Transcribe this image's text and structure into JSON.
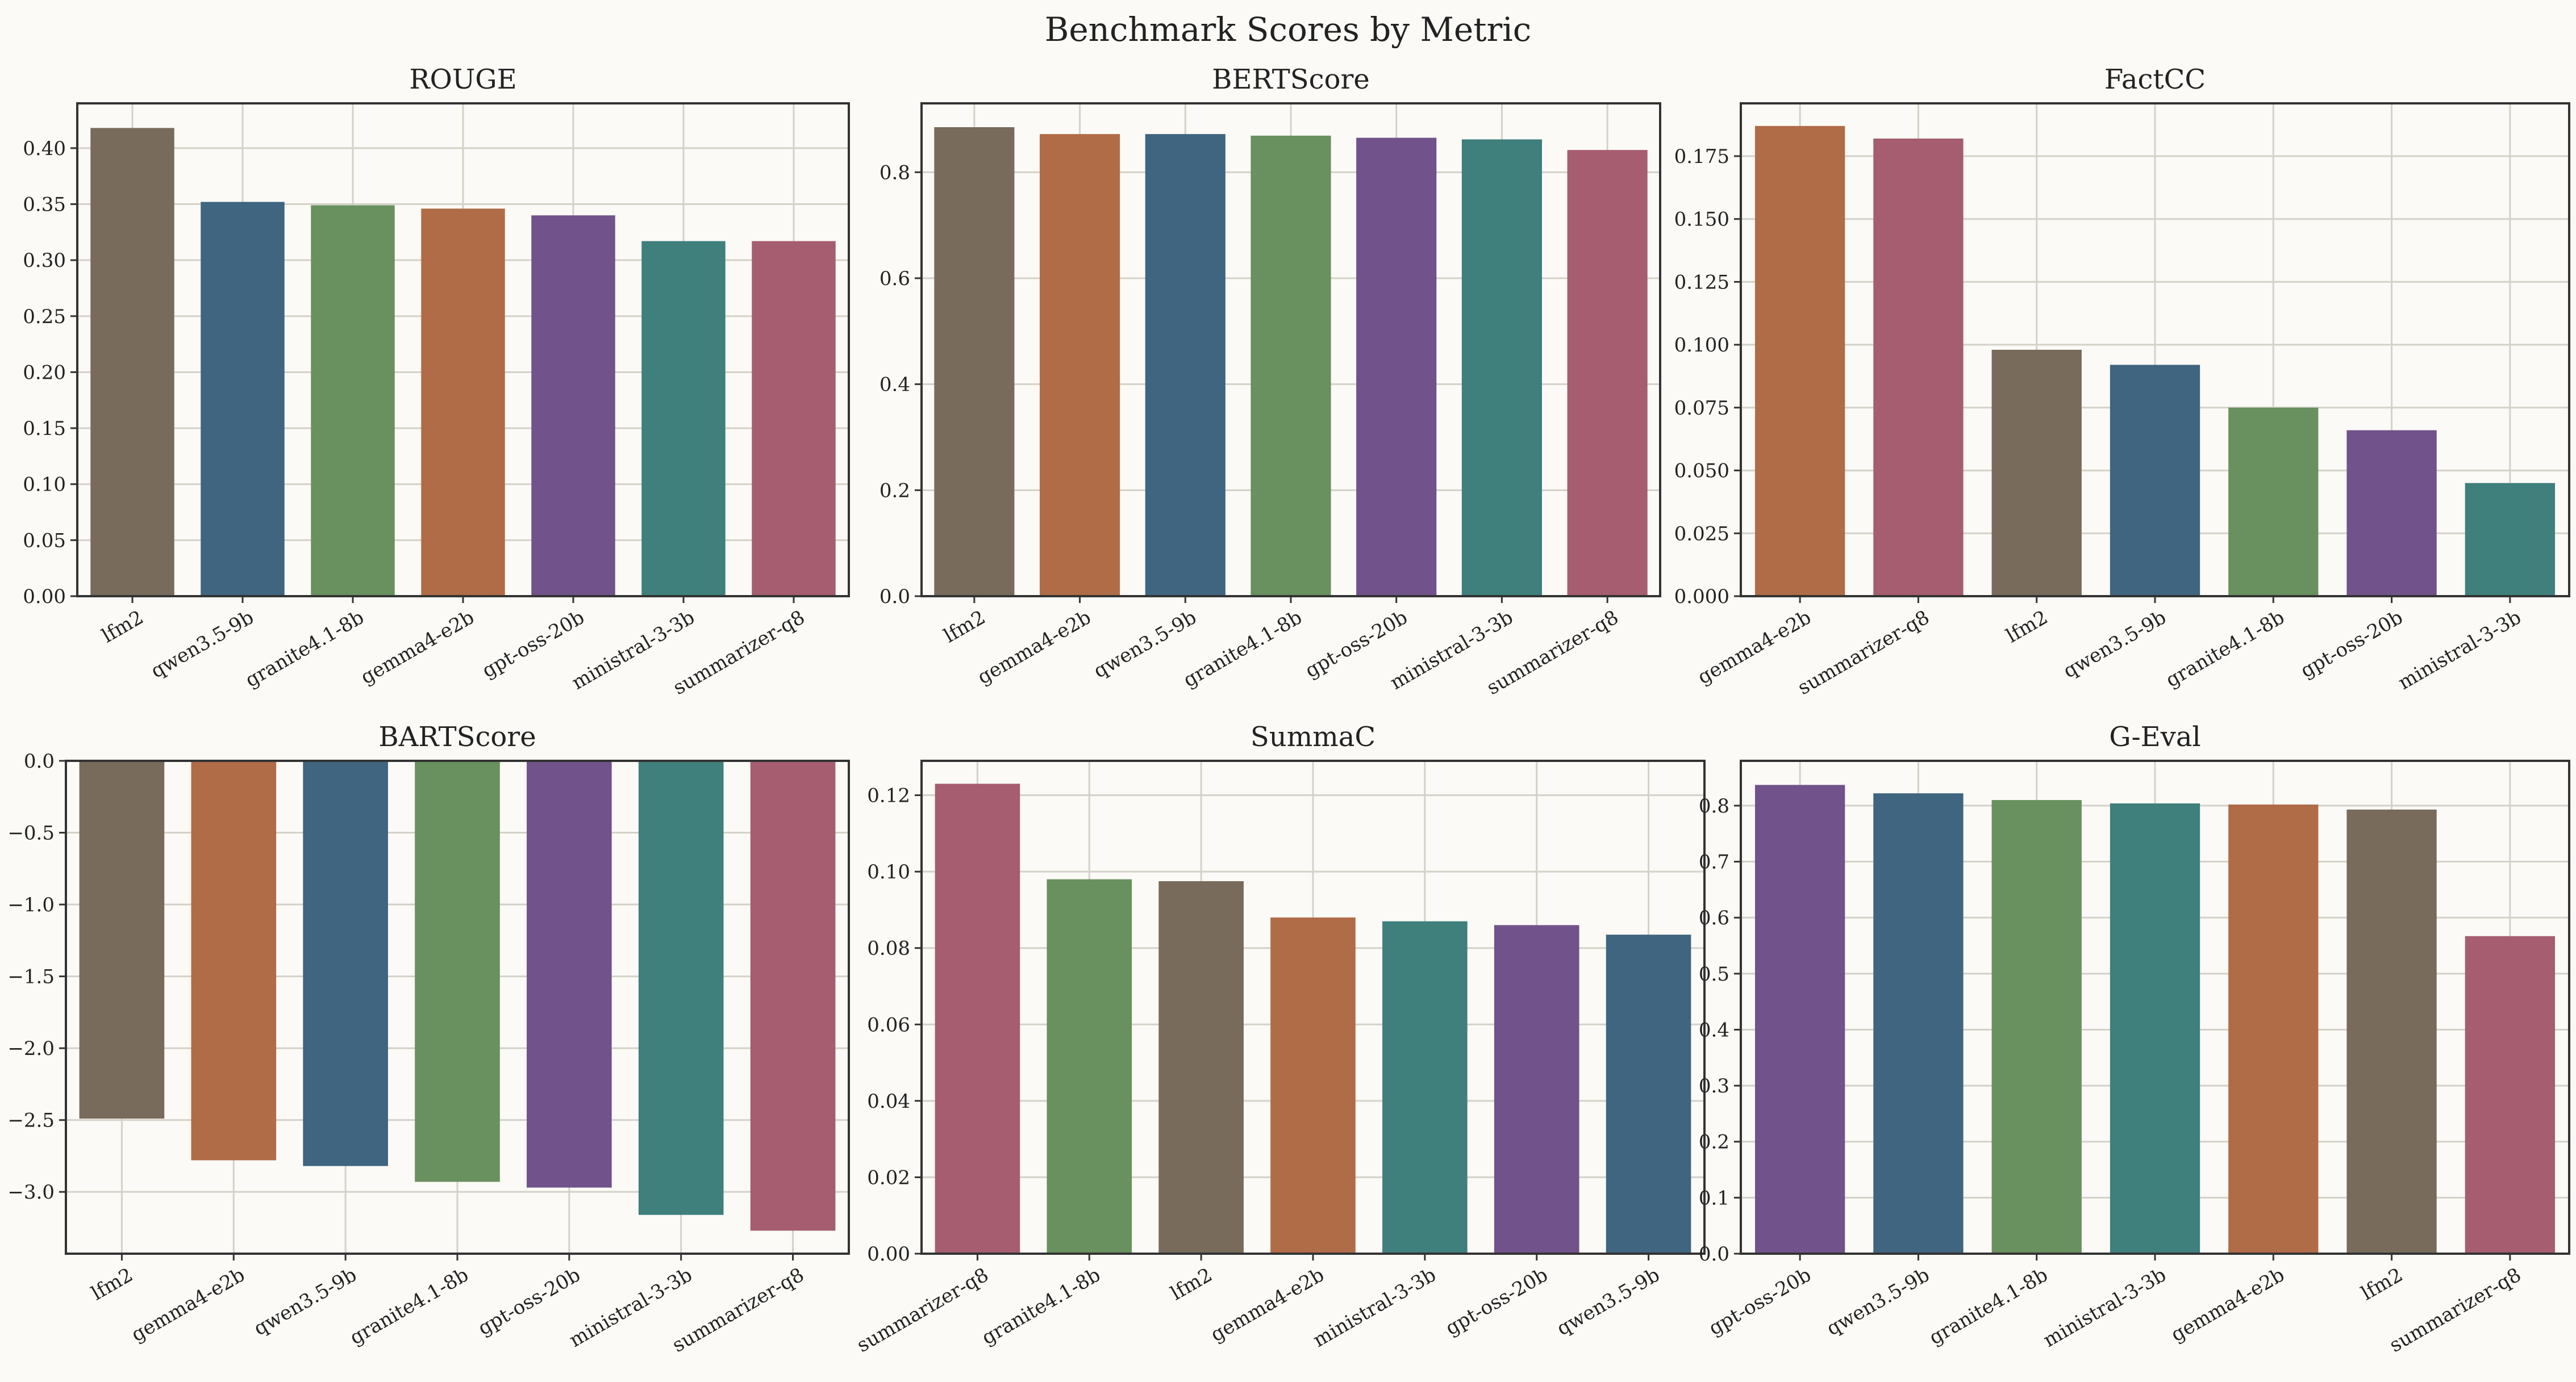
{
  "figure_title": "Benchmark Scores by Metric",
  "colors": {
    "lfm2": "#786b5b",
    "qwen3.5-9b": "#3f6580",
    "granite4.1-8b": "#69905f",
    "gemma4-e2b": "#b06c47",
    "gpt-oss-20b": "#71528a",
    "ministral-3-3b": "#3f7f7c",
    "summarizer-q8": "#a65d70",
    "background": "#fbfaf6",
    "grid": "#d4d1c8"
  },
  "chart_data": [
    {
      "type": "bar",
      "title": "ROUGE",
      "categories": [
        "lfm2",
        "qwen3.5-9b",
        "granite4.1-8b",
        "gemma4-e2b",
        "gpt-oss-20b",
        "ministral-3-3b",
        "summarizer-q8"
      ],
      "values": [
        0.418,
        0.352,
        0.349,
        0.346,
        0.34,
        0.317,
        0.317
      ],
      "ylim": [
        0,
        0.44
      ],
      "yticks": [
        0.0,
        0.05,
        0.1,
        0.15,
        0.2,
        0.25,
        0.3,
        0.35,
        0.4
      ],
      "ytick_labels": [
        "0.00",
        "0.05",
        "0.10",
        "0.15",
        "0.20",
        "0.25",
        "0.30",
        "0.35",
        "0.40"
      ],
      "grid": true
    },
    {
      "type": "bar",
      "title": "BERTScore",
      "categories": [
        "lfm2",
        "gemma4-e2b",
        "qwen3.5-9b",
        "granite4.1-8b",
        "gpt-oss-20b",
        "ministral-3-3b",
        "summarizer-q8"
      ],
      "values": [
        0.885,
        0.872,
        0.872,
        0.869,
        0.865,
        0.862,
        0.842
      ],
      "ylim": [
        0,
        0.93
      ],
      "yticks": [
        0.0,
        0.2,
        0.4,
        0.6,
        0.8
      ],
      "ytick_labels": [
        "0.0",
        "0.2",
        "0.4",
        "0.6",
        "0.8"
      ],
      "grid": true
    },
    {
      "type": "bar",
      "title": "FactCC",
      "categories": [
        "gemma4-e2b",
        "summarizer-q8",
        "lfm2",
        "qwen3.5-9b",
        "granite4.1-8b",
        "gpt-oss-20b",
        "ministral-3-3b"
      ],
      "values": [
        0.187,
        0.182,
        0.098,
        0.092,
        0.075,
        0.066,
        0.045
      ],
      "ylim": [
        0,
        0.196
      ],
      "yticks": [
        0.0,
        0.025,
        0.05,
        0.075,
        0.1,
        0.125,
        0.15,
        0.175
      ],
      "ytick_labels": [
        "0.000",
        "0.025",
        "0.050",
        "0.075",
        "0.100",
        "0.125",
        "0.150",
        "0.175"
      ],
      "grid": true
    },
    {
      "type": "bar",
      "title": "BARTScore",
      "categories": [
        "lfm2",
        "gemma4-e2b",
        "qwen3.5-9b",
        "granite4.1-8b",
        "gpt-oss-20b",
        "ministral-3-3b",
        "summarizer-q8"
      ],
      "values": [
        -2.49,
        -2.78,
        -2.82,
        -2.93,
        -2.97,
        -3.16,
        -3.27
      ],
      "ylim": [
        -3.43,
        0
      ],
      "yticks": [
        0.0,
        -0.5,
        -1.0,
        -1.5,
        -2.0,
        -2.5,
        -3.0
      ],
      "ytick_labels": [
        "0.0",
        "−0.5",
        "−1.0",
        "−1.5",
        "−2.0",
        "−2.5",
        "−3.0"
      ],
      "grid": true
    },
    {
      "type": "bar",
      "title": "SummaC",
      "categories": [
        "summarizer-q8",
        "granite4.1-8b",
        "lfm2",
        "gemma4-e2b",
        "ministral-3-3b",
        "gpt-oss-20b",
        "qwen3.5-9b"
      ],
      "values": [
        0.123,
        0.098,
        0.0975,
        0.088,
        0.087,
        0.086,
        0.0835
      ],
      "ylim": [
        0,
        0.129
      ],
      "yticks": [
        0.0,
        0.02,
        0.04,
        0.06,
        0.08,
        0.1,
        0.12
      ],
      "ytick_labels": [
        "0.00",
        "0.02",
        "0.04",
        "0.06",
        "0.08",
        "0.10",
        "0.12"
      ],
      "grid": true
    },
    {
      "type": "bar",
      "title": "G-Eval",
      "categories": [
        "gpt-oss-20b",
        "qwen3.5-9b",
        "granite4.1-8b",
        "ministral-3-3b",
        "gemma4-e2b",
        "lfm2",
        "summarizer-q8"
      ],
      "values": [
        0.837,
        0.822,
        0.81,
        0.804,
        0.802,
        0.793,
        0.567
      ],
      "ylim": [
        0,
        0.88
      ],
      "yticks": [
        0.0,
        0.1,
        0.2,
        0.3,
        0.4,
        0.5,
        0.6,
        0.7,
        0.8
      ],
      "ytick_labels": [
        "0.0",
        "0.1",
        "0.2",
        "0.3",
        "0.4",
        "0.5",
        "0.6",
        "0.7",
        "0.8"
      ],
      "grid": true
    }
  ]
}
